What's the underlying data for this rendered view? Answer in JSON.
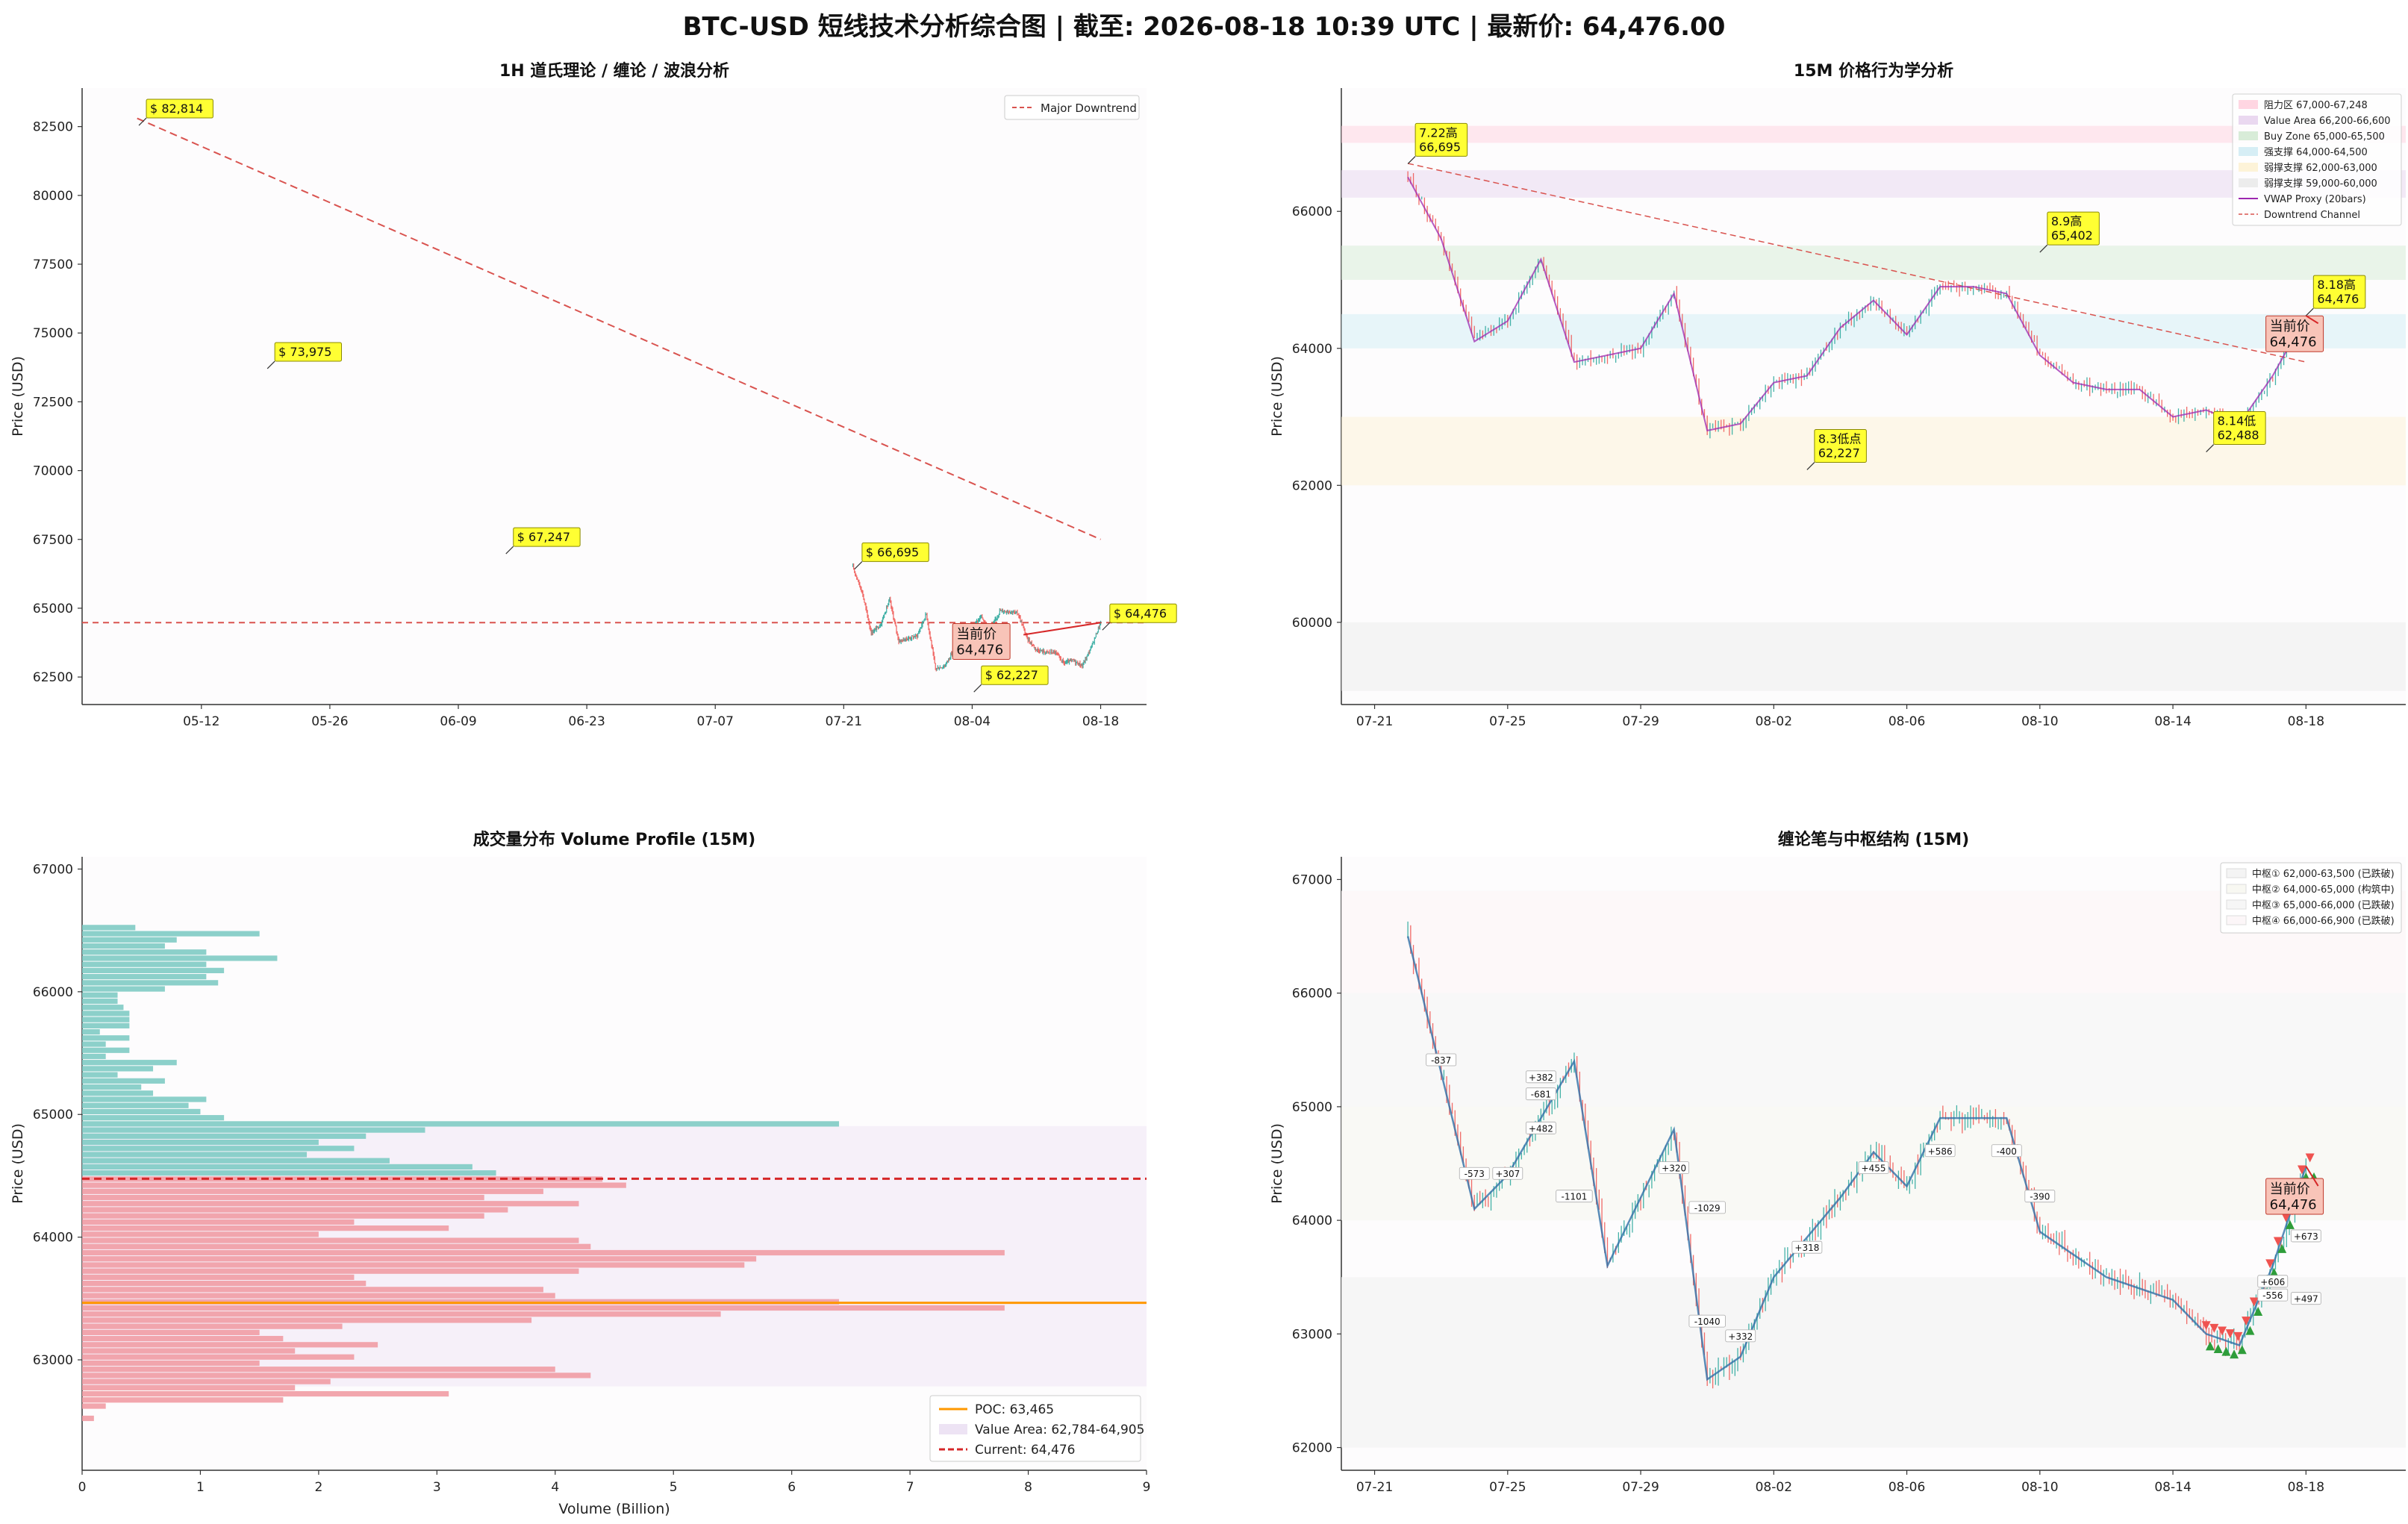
{
  "figure_title": "BTC-USD 短线技术分析综合图 | 截至: 2026-08-18 10:39 UTC | 最新价: 64,476.00",
  "colors": {
    "up": "#26a69a",
    "down": "#ef5350",
    "vwap": "#9c27b0",
    "poc": "#ff9800",
    "current": "#d62728",
    "trend": "#d9534f",
    "annot_bg": "#ffff33",
    "current_bg": "#f8c4b8"
  },
  "chart_data": [
    {
      "id": "p1",
      "type": "line",
      "title": "1H 道氏理论 / 缠论 / 波浪分析",
      "ylabel": "Price (USD)",
      "xlabel": "",
      "xlim": [
        "2026-04-29",
        "2026-08-23"
      ],
      "ylim": [
        61500,
        83900
      ],
      "xticks": [
        "05-12",
        "05-26",
        "06-09",
        "06-23",
        "07-07",
        "07-21",
        "08-04",
        "08-18"
      ],
      "xtick_dates": [
        "2026-05-12",
        "2026-05-26",
        "2026-06-09",
        "2026-06-23",
        "2026-07-07",
        "2026-07-21",
        "2026-08-04",
        "2026-08-18"
      ],
      "yticks": [
        "62500",
        "65000",
        "67500",
        "70000",
        "72500",
        "75000",
        "77500",
        "80000",
        "82500"
      ],
      "legend": [
        "Major Downtrend"
      ],
      "legend_position": "top-right",
      "major_downtrend": {
        "x": [
          "2026-05-05",
          "2026-08-18"
        ],
        "y": [
          82800,
          67500
        ]
      },
      "horizontal_line": 64476,
      "price_path": {
        "x": [
          "2026-07-22",
          "2026-07-23",
          "2026-07-24",
          "2026-07-25",
          "2026-07-26",
          "2026-07-27",
          "2026-07-28",
          "2026-07-29",
          "2026-07-30",
          "2026-07-31",
          "2026-08-01",
          "2026-08-02",
          "2026-08-03",
          "2026-08-04",
          "2026-08-05",
          "2026-08-06",
          "2026-08-07",
          "2026-08-08",
          "2026-08-09",
          "2026-08-10",
          "2026-08-11",
          "2026-08-12",
          "2026-08-13",
          "2026-08-14",
          "2026-08-15",
          "2026-08-16",
          "2026-08-17",
          "2026-08-18"
        ],
        "y": [
          66500,
          65600,
          64100,
          64400,
          65300,
          63800,
          63900,
          64000,
          64800,
          62800,
          62900,
          63500,
          63600,
          64300,
          64700,
          64200,
          64900,
          64900,
          64800,
          63900,
          63500,
          63400,
          63400,
          63000,
          63100,
          62900,
          63600,
          64476
        ]
      },
      "annotations": [
        {
          "text": "$ 82,814",
          "x": "2026-05-06",
          "y": 82814
        },
        {
          "text": "$ 73,975",
          "x": "2026-05-20",
          "y": 73975
        },
        {
          "text": "$ 67,247",
          "x": "2026-06-15",
          "y": 67247
        },
        {
          "text": "$ 66,695",
          "x": "2026-07-23",
          "y": 66695
        },
        {
          "text": "$ 62,227",
          "x": "2026-08-05",
          "y": 62227
        },
        {
          "text": "$ 64,476",
          "x": "2026-08-19",
          "y": 64476
        }
      ],
      "current_label": [
        "当前价",
        "64,476"
      ]
    },
    {
      "id": "p2",
      "type": "line",
      "title": "15M 价格行为学分析",
      "ylabel": "Price (USD)",
      "xlabel": "",
      "xlim": [
        "2026-07-20",
        "2026-08-21"
      ],
      "ylim": [
        58800,
        67800
      ],
      "xticks": [
        "07-21",
        "07-25",
        "07-29",
        "08-02",
        "08-06",
        "08-10",
        "08-14",
        "08-18"
      ],
      "xtick_dates": [
        "2026-07-21",
        "2026-07-25",
        "2026-07-29",
        "2026-08-02",
        "2026-08-06",
        "2026-08-10",
        "2026-08-14",
        "2026-08-18"
      ],
      "yticks": [
        "60000",
        "62000",
        "64000",
        "66000"
      ],
      "legend_position": "top-right",
      "zones": [
        {
          "label": "阻力区 67,000-67,248",
          "lo": 67000,
          "hi": 67248,
          "color": "#ffd6e2"
        },
        {
          "label": "Value Area 66,200-66,600",
          "lo": 66200,
          "hi": 66600,
          "color": "#ead8f0"
        },
        {
          "label": "Buy Zone 65,000-65,500",
          "lo": 65000,
          "hi": 65500,
          "color": "#d8ecd8"
        },
        {
          "label": "强支撑 64,000-64,500",
          "lo": 64000,
          "hi": 64500,
          "color": "#d6eef5"
        },
        {
          "label": "弱撑支撑 62,000-63,000",
          "lo": 62000,
          "hi": 63000,
          "color": "#fdf3d8"
        },
        {
          "label": "弱撑支撑 59,000-60,000",
          "lo": 59000,
          "hi": 60000,
          "color": "#ececec"
        }
      ],
      "vwap_label": "VWAP Proxy (20bars)",
      "channel_label": "Downtrend Channel",
      "channel": {
        "x": [
          "2026-07-22",
          "2026-08-18"
        ],
        "y": [
          66700,
          63800
        ]
      },
      "price_path": {
        "x": [
          "2026-07-22",
          "2026-07-23",
          "2026-07-24",
          "2026-07-25",
          "2026-07-26",
          "2026-07-27",
          "2026-07-28",
          "2026-07-29",
          "2026-07-30",
          "2026-07-31",
          "2026-08-01",
          "2026-08-02",
          "2026-08-03",
          "2026-08-04",
          "2026-08-05",
          "2026-08-06",
          "2026-08-07",
          "2026-08-08",
          "2026-08-09",
          "2026-08-10",
          "2026-08-11",
          "2026-08-12",
          "2026-08-13",
          "2026-08-14",
          "2026-08-15",
          "2026-08-16",
          "2026-08-17",
          "2026-08-18"
        ],
        "y": [
          66500,
          65600,
          64100,
          64400,
          65300,
          63800,
          63900,
          64000,
          64800,
          62800,
          62900,
          63500,
          63600,
          64300,
          64700,
          64200,
          64900,
          64900,
          64800,
          63900,
          63500,
          63400,
          63400,
          63000,
          63100,
          62900,
          63600,
          64476
        ]
      },
      "annotations": [
        {
          "text": [
            "7.22高",
            "66,695"
          ],
          "x": "2026-07-22",
          "y": 66695
        },
        {
          "text": [
            "8.9高",
            "65,402"
          ],
          "x": "2026-08-10",
          "y": 65402
        },
        {
          "text": [
            "8.3低点",
            "62,227"
          ],
          "x": "2026-08-03",
          "y": 62227
        },
        {
          "text": [
            "8.14低",
            "62,488"
          ],
          "x": "2026-08-15",
          "y": 62488
        },
        {
          "text": [
            "8.18高",
            "64,476"
          ],
          "x": "2026-08-18",
          "y": 64476
        }
      ],
      "current_label": [
        "当前价",
        "64,476"
      ]
    },
    {
      "id": "p3",
      "type": "bar",
      "title": "成交量分布 Volume Profile (15M)",
      "ylabel": "Price (USD)",
      "xlabel": "Volume (Billion)",
      "xlim": [
        0,
        9
      ],
      "ylim": [
        62100,
        67100
      ],
      "xticks": [
        "0",
        "1",
        "2",
        "3",
        "4",
        "5",
        "6",
        "7",
        "8",
        "9"
      ],
      "yticks": [
        "63000",
        "64000",
        "65000",
        "66000",
        "67000"
      ],
      "poc": 63465,
      "value_area": [
        62784,
        64905
      ],
      "current": 64476,
      "legend": [
        "POC: 63,465",
        "Value Area: 62,784-64,905",
        "Current: 64,476"
      ],
      "legend_position": "lower-right",
      "bins": [
        [
          66520,
          0.45
        ],
        [
          66470,
          1.5
        ],
        [
          66420,
          0.8
        ],
        [
          66370,
          0.7
        ],
        [
          66320,
          1.05
        ],
        [
          66270,
          1.65
        ],
        [
          66220,
          1.05
        ],
        [
          66170,
          1.2
        ],
        [
          66120,
          1.05
        ],
        [
          66070,
          1.15
        ],
        [
          66020,
          0.7
        ],
        [
          65970,
          0.3
        ],
        [
          65920,
          0.3
        ],
        [
          65870,
          0.35
        ],
        [
          65820,
          0.4
        ],
        [
          65770,
          0.4
        ],
        [
          65720,
          0.4
        ],
        [
          65670,
          0.15
        ],
        [
          65620,
          0.4
        ],
        [
          65570,
          0.2
        ],
        [
          65520,
          0.4
        ],
        [
          65470,
          0.2
        ],
        [
          65420,
          0.8
        ],
        [
          65370,
          0.6
        ],
        [
          65320,
          0.3
        ],
        [
          65270,
          0.7
        ],
        [
          65220,
          0.5
        ],
        [
          65170,
          0.6
        ],
        [
          65120,
          1.05
        ],
        [
          65070,
          0.9
        ],
        [
          65020,
          1.0
        ],
        [
          64970,
          1.2
        ],
        [
          64920,
          6.4
        ],
        [
          64870,
          2.9
        ],
        [
          64820,
          2.4
        ],
        [
          64770,
          2.0
        ],
        [
          64720,
          2.3
        ],
        [
          64670,
          1.9
        ],
        [
          64620,
          2.6
        ],
        [
          64570,
          3.3
        ],
        [
          64520,
          3.5
        ],
        [
          64470,
          4.4
        ],
        [
          64420,
          4.6
        ],
        [
          64370,
          3.9
        ],
        [
          64320,
          3.4
        ],
        [
          64270,
          4.2
        ],
        [
          64220,
          3.6
        ],
        [
          64170,
          3.4
        ],
        [
          64120,
          2.3
        ],
        [
          64070,
          3.1
        ],
        [
          64020,
          2.0
        ],
        [
          63970,
          4.2
        ],
        [
          63920,
          4.3
        ],
        [
          63870,
          7.8
        ],
        [
          63820,
          5.7
        ],
        [
          63770,
          5.6
        ],
        [
          63720,
          4.2
        ],
        [
          63670,
          2.3
        ],
        [
          63620,
          2.4
        ],
        [
          63570,
          3.9
        ],
        [
          63520,
          4.0
        ],
        [
          63470,
          6.4
        ],
        [
          63420,
          7.8
        ],
        [
          63370,
          5.4
        ],
        [
          63320,
          3.8
        ],
        [
          63270,
          2.2
        ],
        [
          63220,
          1.5
        ],
        [
          63170,
          1.7
        ],
        [
          63120,
          2.5
        ],
        [
          63070,
          1.8
        ],
        [
          63020,
          2.3
        ],
        [
          62970,
          1.5
        ],
        [
          62920,
          4.0
        ],
        [
          62870,
          4.3
        ],
        [
          62820,
          2.1
        ],
        [
          62770,
          1.8
        ],
        [
          62720,
          3.1
        ],
        [
          62670,
          1.7
        ],
        [
          62620,
          0.2
        ],
        [
          62520,
          0.1
        ]
      ]
    },
    {
      "id": "p4",
      "type": "line",
      "title": "缠论笔与中枢结构 (15M)",
      "ylabel": "Price (USD)",
      "xlabel": "",
      "xlim": [
        "2026-07-20",
        "2026-08-21"
      ],
      "ylim": [
        61800,
        67200
      ],
      "xticks": [
        "07-21",
        "07-25",
        "07-29",
        "08-02",
        "08-06",
        "08-10",
        "08-14",
        "08-18"
      ],
      "xtick_dates": [
        "2026-07-21",
        "2026-07-25",
        "2026-07-29",
        "2026-08-02",
        "2026-08-06",
        "2026-08-10",
        "2026-08-14",
        "2026-08-18"
      ],
      "yticks": [
        "62000",
        "63000",
        "64000",
        "65000",
        "66000",
        "67000"
      ],
      "legend_position": "top-right",
      "zhongshu": [
        {
          "label": "中枢① 62,000-63,500 (已跌破)",
          "lo": 62000,
          "hi": 63500,
          "color": "#f4f4f4"
        },
        {
          "label": "中枢② 64,000-65,000 (构筑中)",
          "lo": 64000,
          "hi": 65000,
          "color": "#f8f8f2"
        },
        {
          "label": "中枢③ 65,000-66,000 (已跌破)",
          "lo": 65000,
          "hi": 66000,
          "color": "#f6f6f6"
        },
        {
          "label": "中枢④ 66,000-66,900 (已跌破)",
          "lo": 66000,
          "hi": 66900,
          "color": "#fcf6f8"
        }
      ],
      "bi_points": {
        "x": [
          "2026-07-22",
          "2026-07-24",
          "2026-07-25",
          "2026-07-26",
          "2026-07-27",
          "2026-07-28",
          "2026-07-30",
          "2026-07-31",
          "2026-08-01",
          "2026-08-02",
          "2026-08-04",
          "2026-08-05",
          "2026-08-06",
          "2026-08-07",
          "2026-08-09",
          "2026-08-10",
          "2026-08-12",
          "2026-08-14",
          "2026-08-15",
          "2026-08-16",
          "2026-08-17",
          "2026-08-18"
        ],
        "y": [
          66500,
          64100,
          64400,
          64900,
          65400,
          63600,
          64800,
          62600,
          62800,
          63500,
          64200,
          64600,
          64300,
          64900,
          64900,
          63900,
          63500,
          63300,
          63000,
          62900,
          63600,
          64476
        ]
      },
      "bi_labels": [
        {
          "text": "-837",
          "x": "2026-07-23",
          "y": 65400
        },
        {
          "text": "-573",
          "x": "2026-07-24",
          "y": 64400
        },
        {
          "text": "+307",
          "x": "2026-07-25",
          "y": 64400
        },
        {
          "text": "+482",
          "x": "2026-07-26",
          "y": 64800
        },
        {
          "text": "+382",
          "x": "2026-07-26",
          "y": 65250
        },
        {
          "text": "-681",
          "x": "2026-07-26",
          "y": 65100
        },
        {
          "text": "-1101",
          "x": "2026-07-27",
          "y": 64200
        },
        {
          "text": "+320",
          "x": "2026-07-30",
          "y": 64450
        },
        {
          "text": "-1029",
          "x": "2026-07-31",
          "y": 64100
        },
        {
          "text": "-1040",
          "x": "2026-07-31",
          "y": 63100
        },
        {
          "text": "+332",
          "x": "2026-08-01",
          "y": 62970
        },
        {
          "text": "+318",
          "x": "2026-08-03",
          "y": 63750
        },
        {
          "text": "+455",
          "x": "2026-08-05",
          "y": 64450
        },
        {
          "text": "+586",
          "x": "2026-08-07",
          "y": 64600
        },
        {
          "text": "-400",
          "x": "2026-08-09",
          "y": 64600
        },
        {
          "text": "-390",
          "x": "2026-08-10",
          "y": 64200
        },
        {
          "text": "+673",
          "x": "2026-08-18",
          "y": 63850
        },
        {
          "text": "+606",
          "x": "2026-08-17",
          "y": 63450
        },
        {
          "text": "-556",
          "x": "2026-08-17",
          "y": 63330
        },
        {
          "text": "+497",
          "x": "2026-08-18",
          "y": 63300
        }
      ],
      "current_label": [
        "当前价",
        "64,476"
      ]
    }
  ]
}
